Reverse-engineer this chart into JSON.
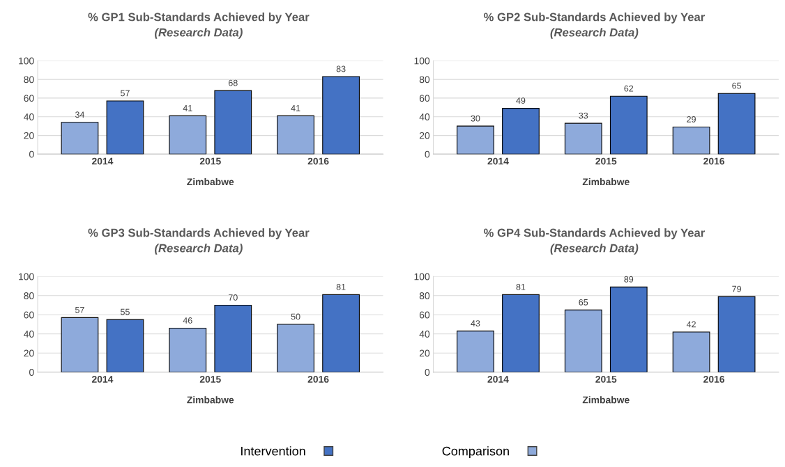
{
  "chart_data": [
    {
      "type": "bar",
      "title": "% GP1 Sub-Standards Achieved by Year",
      "subtitle": "(Research Data)",
      "xlabel": "Zimbabwe",
      "categories": [
        "2014",
        "2015",
        "2016"
      ],
      "series": [
        {
          "name": "Comparison",
          "color": "#8eaadb",
          "values": [
            34,
            41,
            41
          ]
        },
        {
          "name": "Intervention",
          "color": "#4472c4",
          "values": [
            57,
            68,
            83
          ]
        }
      ],
      "ylim": [
        0,
        100
      ],
      "yticks": [
        0,
        20,
        40,
        60,
        80,
        100
      ],
      "grid": "y",
      "data_labels": true,
      "legend": "bottom"
    },
    {
      "type": "bar",
      "title": "% GP2 Sub-Standards Achieved by Year",
      "subtitle": "(Research Data)",
      "xlabel": "Zimbabwe",
      "categories": [
        "2014",
        "2015",
        "2016"
      ],
      "series": [
        {
          "color": "#8eaadb",
          "values": [
            30,
            33,
            29
          ]
        },
        {
          "color": "#4472c4",
          "values": [
            49,
            62,
            65
          ]
        }
      ],
      "ylim": [
        0,
        100
      ],
      "yticks": [
        0,
        20,
        40,
        60,
        80,
        100
      ],
      "grid": "y",
      "data_labels": true
    },
    {
      "type": "bar",
      "title": "% GP3 Sub-Standards Achieved by Year",
      "subtitle": "(Research Data)",
      "xlabel": "Zimbabwe",
      "categories": [
        "2014",
        "2015",
        "2016"
      ],
      "series": [
        {
          "color": "#8eaadb",
          "values": [
            57,
            46,
            50
          ]
        },
        {
          "color": "#4472c4",
          "values": [
            55,
            70,
            81
          ]
        }
      ],
      "ylim": [
        0,
        100
      ],
      "yticks": [
        0,
        20,
        40,
        60,
        80,
        100
      ],
      "grid": "y",
      "data_labels": true
    },
    {
      "type": "bar",
      "title": "% GP4 Sub-Standards Achieved by Year",
      "subtitle": "(Research Data)",
      "xlabel": "Zimbabwe",
      "categories": [
        "2014",
        "2015",
        "2016"
      ],
      "series": [
        {
          "color": "#8eaadb",
          "values": [
            43,
            65,
            42
          ]
        },
        {
          "color": "#4472c4",
          "values": [
            81,
            89,
            79
          ]
        }
      ],
      "ylim": [
        0,
        100
      ],
      "yticks": [
        0,
        20,
        40,
        60,
        80,
        100
      ],
      "grid": "y",
      "data_labels": true
    }
  ]
}
